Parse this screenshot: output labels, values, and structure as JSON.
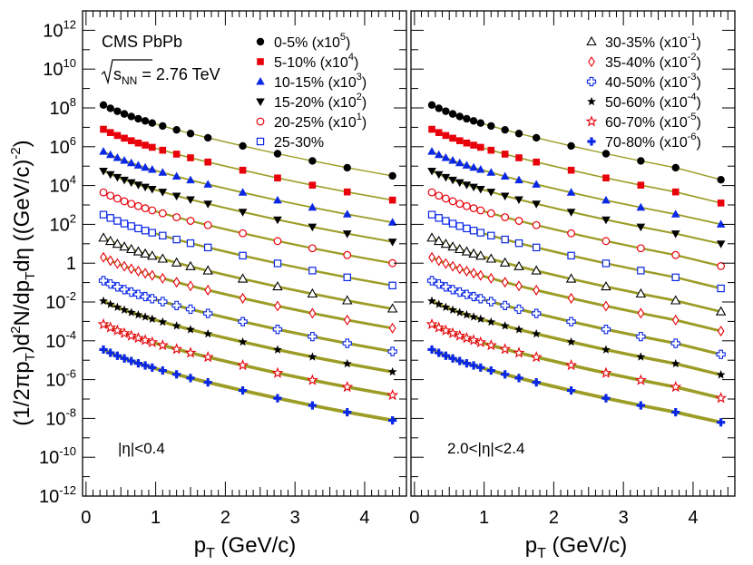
{
  "chart_data": {
    "type": "scatter",
    "title": "",
    "experiment": "CMS PbPb",
    "energy_sqrt": "s",
    "energy_sub": "NN",
    "energy_text": " = 2.76 TeV",
    "xlabel_main": "p",
    "xlabel_sub": "T",
    "xlabel_rest": " (GeV/c)",
    "ylabel": {
      "p1": "(1/2πp",
      "s1": "T",
      "p2": ")d",
      "e1": "2",
      "p3": "N/dp",
      "s2": "T",
      "p4": "dη  ((GeV/c)",
      "e2": "-2",
      "p5": ")"
    },
    "xlim": [
      -0.05,
      4.6
    ],
    "ylim_log10": [
      -12,
      13
    ],
    "y_tick_labels": [
      {
        "exp": -12,
        "base": "10",
        "sup": "-12"
      },
      {
        "exp": -10,
        "base": "10",
        "sup": "-10"
      },
      {
        "exp": -8,
        "base": "10",
        "sup": "-8"
      },
      {
        "exp": -6,
        "base": "10",
        "sup": "-6"
      },
      {
        "exp": -4,
        "base": "10",
        "sup": "-4"
      },
      {
        "exp": -2,
        "base": "10",
        "sup": "-2"
      },
      {
        "exp": 0,
        "base": "1",
        "sup": ""
      },
      {
        "exp": 2,
        "base": "10",
        "sup": "2"
      },
      {
        "exp": 4,
        "base": "10",
        "sup": "4"
      },
      {
        "exp": 6,
        "base": "10",
        "sup": "6"
      },
      {
        "exp": 8,
        "base": "10",
        "sup": "8"
      },
      {
        "exp": 10,
        "base": "10",
        "sup": "10"
      },
      {
        "exp": 12,
        "base": "10",
        "sup": "12"
      }
    ],
    "x_tick_labels": [
      "0",
      "1",
      "2",
      "3",
      "4"
    ],
    "x_points": [
      0.25,
      0.35,
      0.45,
      0.55,
      0.65,
      0.75,
      0.85,
      0.95,
      1.1,
      1.3,
      1.5,
      1.75,
      2.25,
      2.75,
      3.25,
      3.75,
      4.4
    ],
    "panels": [
      {
        "label_pre": "|η|<0.4",
        "series": [
          {
            "name": "0-5%",
            "legend_text": "0-5% (x10",
            "legend_exp": "5",
            "legend_close": ")",
            "marker": "circle-filled",
            "color": "#000000",
            "y_log10": [
              8.15,
              7.98,
              7.83,
              7.69,
              7.56,
              7.44,
              7.33,
              7.22,
              7.07,
              6.87,
              6.68,
              6.46,
              6.04,
              5.64,
              5.27,
              4.92,
              4.5
            ]
          },
          {
            "name": "5-10%",
            "legend_text": "5-10% (x10",
            "legend_exp": "4",
            "legend_close": ")",
            "marker": "square-filled",
            "color": "#e8000b",
            "y_log10": [
              6.9,
              6.73,
              6.58,
              6.44,
              6.31,
              6.19,
              6.08,
              5.97,
              5.82,
              5.62,
              5.43,
              5.21,
              4.79,
              4.39,
              4.02,
              3.67,
              3.25
            ]
          },
          {
            "name": "10-15%",
            "legend_text": "10-15% (x10",
            "legend_exp": "3",
            "legend_close": ")",
            "marker": "triangle-up-filled",
            "color": "#0a27e6",
            "y_log10": [
              5.75,
              5.58,
              5.43,
              5.29,
              5.16,
              5.04,
              4.93,
              4.82,
              4.67,
              4.47,
              4.28,
              4.06,
              3.64,
              3.24,
              2.87,
              2.52,
              2.1
            ]
          },
          {
            "name": "15-20%",
            "legend_text": "15-20% (x10",
            "legend_exp": "2",
            "legend_close": ")",
            "marker": "triangle-down-filled",
            "color": "#000000",
            "y_log10": [
              4.75,
              4.58,
              4.43,
              4.29,
              4.16,
              4.04,
              3.93,
              3.82,
              3.67,
              3.47,
              3.28,
              3.06,
              2.64,
              2.24,
              1.87,
              1.52,
              1.1
            ]
          },
          {
            "name": "20-25%",
            "legend_text": "20-25% (x10",
            "legend_exp": "1",
            "legend_close": ")",
            "marker": "circle-open",
            "color": "#e8000b",
            "y_log10": [
              3.65,
              3.48,
              3.33,
              3.19,
              3.06,
              2.94,
              2.83,
              2.72,
              2.57,
              2.37,
              2.18,
              1.96,
              1.54,
              1.14,
              0.77,
              0.42,
              0.0
            ]
          },
          {
            "name": "25-30%",
            "legend_text": "25-30%",
            "legend_exp": "",
            "legend_close": "",
            "marker": "square-open",
            "color": "#0a27e6",
            "y_log10": [
              2.5,
              2.33,
              2.18,
              2.04,
              1.91,
              1.79,
              1.68,
              1.57,
              1.42,
              1.22,
              1.03,
              0.81,
              0.39,
              -0.01,
              -0.38,
              -0.73,
              -1.15
            ]
          },
          {
            "name": "30-35%",
            "legend_text": "30-35% (x10",
            "legend_exp": "-1",
            "legend_close": ")",
            "marker": "triangle-up-open",
            "color": "#000000",
            "y_log10": [
              1.3,
              1.13,
              0.98,
              0.84,
              0.71,
              0.59,
              0.48,
              0.37,
              0.22,
              0.02,
              -0.17,
              -0.39,
              -0.81,
              -1.21,
              -1.58,
              -1.93,
              -2.35
            ]
          },
          {
            "name": "35-40%",
            "legend_text": "35-40% (x10",
            "legend_exp": "-2",
            "legend_close": ")",
            "marker": "diamond-open",
            "color": "#e8000b",
            "y_log10": [
              0.3,
              0.13,
              -0.02,
              -0.16,
              -0.29,
              -0.41,
              -0.52,
              -0.63,
              -0.78,
              -0.98,
              -1.17,
              -1.39,
              -1.81,
              -2.21,
              -2.58,
              -2.93,
              -3.35
            ]
          },
          {
            "name": "40-50%",
            "legend_text": "40-50% (x10",
            "legend_exp": "-3",
            "legend_close": ")",
            "marker": "cross-open",
            "color": "#0a27e6",
            "y_log10": [
              -0.9,
              -1.07,
              -1.22,
              -1.36,
              -1.49,
              -1.61,
              -1.72,
              -1.83,
              -1.98,
              -2.18,
              -2.37,
              -2.59,
              -3.01,
              -3.41,
              -3.78,
              -4.13,
              -4.55
            ]
          },
          {
            "name": "50-60%",
            "legend_text": "50-60% (x10",
            "legend_exp": "-4",
            "legend_close": ")",
            "marker": "star-filled",
            "color": "#000000",
            "y_log10": [
              -1.95,
              -2.12,
              -2.27,
              -2.41,
              -2.54,
              -2.66,
              -2.77,
              -2.88,
              -3.03,
              -3.23,
              -3.42,
              -3.64,
              -4.06,
              -4.46,
              -4.83,
              -5.18,
              -5.6
            ]
          },
          {
            "name": "60-70%",
            "legend_text": "60-70% (x10",
            "legend_exp": "-5",
            "legend_close": ")",
            "marker": "star-open",
            "color": "#e8000b",
            "y_log10": [
              -3.15,
              -3.32,
              -3.47,
              -3.61,
              -3.74,
              -3.86,
              -3.97,
              -4.08,
              -4.23,
              -4.43,
              -4.62,
              -4.84,
              -5.26,
              -5.66,
              -6.03,
              -6.38,
              -6.8
            ]
          },
          {
            "name": "70-80%",
            "legend_text": "70-80% (x10",
            "legend_exp": "-6",
            "legend_close": ")",
            "marker": "plus-filled",
            "color": "#0a27e6",
            "y_log10": [
              -4.45,
              -4.62,
              -4.77,
              -4.91,
              -5.04,
              -5.16,
              -5.27,
              -5.38,
              -5.53,
              -5.73,
              -5.92,
              -6.14,
              -6.56,
              -6.96,
              -7.33,
              -7.68,
              -8.1
            ]
          }
        ]
      },
      {
        "label_pre": "2.0<|η|<2.4",
        "series": [
          {
            "name": "0-5%",
            "y_log10": [
              8.15,
              7.98,
              7.83,
              7.69,
              7.56,
              7.44,
              7.33,
              7.22,
              7.07,
              6.87,
              6.68,
              6.46,
              6.04,
              5.64,
              5.27,
              4.92,
              4.3
            ]
          },
          {
            "name": "5-10%",
            "y_log10": [
              6.9,
              6.73,
              6.58,
              6.44,
              6.31,
              6.19,
              6.08,
              5.97,
              5.82,
              5.62,
              5.43,
              5.21,
              4.79,
              4.39,
              4.02,
              3.67,
              3.1
            ]
          },
          {
            "name": "10-15%",
            "y_log10": [
              5.75,
              5.58,
              5.43,
              5.29,
              5.16,
              5.04,
              4.93,
              4.82,
              4.67,
              4.47,
              4.28,
              4.06,
              3.64,
              3.24,
              2.87,
              2.52,
              2.0
            ]
          },
          {
            "name": "15-20%",
            "y_log10": [
              4.75,
              4.58,
              4.43,
              4.29,
              4.16,
              4.04,
              3.93,
              3.82,
              3.67,
              3.47,
              3.28,
              3.06,
              2.64,
              2.24,
              1.87,
              1.52,
              1.0
            ]
          },
          {
            "name": "20-25%",
            "y_log10": [
              3.65,
              3.48,
              3.33,
              3.19,
              3.06,
              2.94,
              2.83,
              2.72,
              2.57,
              2.37,
              2.18,
              1.96,
              1.54,
              1.14,
              0.77,
              0.42,
              -0.15
            ]
          },
          {
            "name": "25-30%",
            "y_log10": [
              2.5,
              2.33,
              2.18,
              2.04,
              1.91,
              1.79,
              1.68,
              1.57,
              1.42,
              1.22,
              1.03,
              0.81,
              0.39,
              -0.01,
              -0.38,
              -0.73,
              -1.3
            ]
          },
          {
            "name": "30-35%",
            "y_log10": [
              1.3,
              1.13,
              0.98,
              0.84,
              0.71,
              0.59,
              0.48,
              0.37,
              0.22,
              0.02,
              -0.17,
              -0.39,
              -0.81,
              -1.21,
              -1.58,
              -1.93,
              -2.5
            ]
          },
          {
            "name": "35-40%",
            "y_log10": [
              0.3,
              0.13,
              -0.02,
              -0.16,
              -0.29,
              -0.41,
              -0.52,
              -0.63,
              -0.78,
              -0.98,
              -1.17,
              -1.39,
              -1.81,
              -2.21,
              -2.58,
              -2.93,
              -3.5
            ]
          },
          {
            "name": "40-50%",
            "y_log10": [
              -0.9,
              -1.07,
              -1.22,
              -1.36,
              -1.49,
              -1.61,
              -1.72,
              -1.83,
              -1.98,
              -2.18,
              -2.37,
              -2.59,
              -3.01,
              -3.41,
              -3.78,
              -4.13,
              -4.7
            ]
          },
          {
            "name": "50-60%",
            "y_log10": [
              -1.95,
              -2.12,
              -2.27,
              -2.41,
              -2.54,
              -2.66,
              -2.77,
              -2.88,
              -3.03,
              -3.23,
              -3.42,
              -3.64,
              -4.06,
              -4.46,
              -4.83,
              -5.18,
              -5.75
            ]
          },
          {
            "name": "60-70%",
            "y_log10": [
              -3.15,
              -3.32,
              -3.47,
              -3.61,
              -3.74,
              -3.86,
              -3.97,
              -4.08,
              -4.23,
              -4.43,
              -4.62,
              -4.84,
              -5.26,
              -5.66,
              -6.03,
              -6.38,
              -6.95
            ]
          },
          {
            "name": "70-80%",
            "y_log10": [
              -4.45,
              -4.62,
              -4.77,
              -4.91,
              -5.04,
              -5.16,
              -5.27,
              -5.38,
              -5.53,
              -5.73,
              -5.92,
              -6.14,
              -6.56,
              -6.96,
              -7.33,
              -7.68,
              -8.2
            ]
          }
        ]
      }
    ],
    "fit_line_color": "#8b8b00"
  }
}
